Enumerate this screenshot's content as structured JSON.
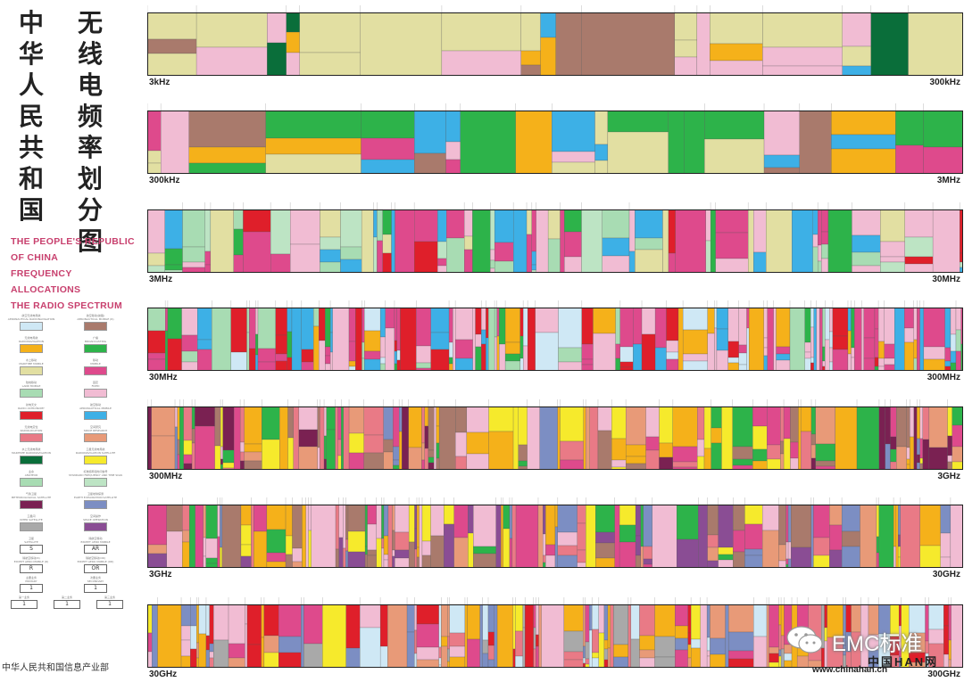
{
  "title": {
    "cn_left": "中华人民共和国",
    "cn_right": "无线电频率划分图",
    "en": "THE PEOPLE'S REPUBLIC\nOF CHINA\nFREQUENCY ALLOCATIONS\nTHE RADIO SPECTRUM"
  },
  "footer": "中华人民共和国信息产业部",
  "colors": {
    "aero_radionav": "#cfe8f5",
    "aero_mobile_route": "#a97a6c",
    "radionav": "#f5b11a",
    "broadcasting": "#2db34a",
    "maritime_mobile": "#e2dfa2",
    "mobile": "#de4a8c",
    "land_mobile": "#a8dcb3",
    "fixed": "#f1bcd3",
    "radio_astronomy": "#df1f2a",
    "aero_mobile": "#3db0e6",
    "earth_exploration": "#e89a78",
    "radiolocation": "#e97a86",
    "maritime_radionav": "#0a6e3a",
    "sat_radionav": "#f6ea2c",
    "space_research": "#7c8ec3",
    "std_freq": "#bde4c4",
    "meteorological": "#7a2152",
    "inter_satellite": "#a9a9a9",
    "space_ops": "#8a4d94",
    "white": "#ffffff"
  },
  "legend": {
    "items": [
      {
        "cn": "航空无线电导航",
        "en": "AERONAUTICAL RADIONAVIGATION",
        "color": "#cfe8f5"
      },
      {
        "cn": "航空移动(航路)",
        "en": "AERONAUTICAL MOBILE (R)",
        "color": "#a97a6c"
      },
      {
        "cn": "无线电导航",
        "en": "RADIONAVIGATION",
        "color": "#f5b11a"
      },
      {
        "cn": "广播",
        "en": "BROADCASTING",
        "color": "#2db34a"
      },
      {
        "cn": "水上移动",
        "en": "MARITIME MOBILE",
        "color": "#e2dfa2"
      },
      {
        "cn": "移动",
        "en": "MOBILE",
        "color": "#de4a8c"
      },
      {
        "cn": "陆地移动",
        "en": "LAND MOBILE",
        "color": "#a8dcb3"
      },
      {
        "cn": "固定",
        "en": "FIXED",
        "color": "#f1bcd3"
      },
      {
        "cn": "射电天文",
        "en": "RADIO ASTRONOMY",
        "color": "#df1f2a"
      },
      {
        "cn": "航空移动",
        "en": "AERONAUTICAL MOBILE",
        "color": "#3db0e6"
      },
      {
        "cn": "无线电定位",
        "en": "RADIOLOCATION",
        "color": "#e97a86"
      },
      {
        "cn": "空间研究",
        "en": "SPACE RESEARCH",
        "color": "#e89a78"
      },
      {
        "cn": "水上无线电导航",
        "en": "MARITIME RADIONAVIGATION",
        "color": "#0a6e3a"
      },
      {
        "cn": "卫星无线电导航",
        "en": "RADIONAVIGATION SATELLITE",
        "color": "#f6ea2c"
      },
      {
        "cn": "业余",
        "en": "AMATEUR",
        "color": "#a8dcb3"
      },
      {
        "cn": "标准频率和时间信号",
        "en": "STANDARD FREQUENCY AND TIME SIGNAL",
        "color": "#bde4c4"
      },
      {
        "cn": "气象卫星",
        "en": "METEOROLOGICAL SATELLITE",
        "color": "#7a2152"
      },
      {
        "cn": "卫星地球探测",
        "en": "EARTH EXPLORATION SATELLITE",
        "color": "#7c8ec3"
      },
      {
        "cn": "卫星间",
        "en": "INTER SATELLITE",
        "color": "#a9a9a9"
      },
      {
        "cn": "空间操作",
        "en": "SPACE OPERATION",
        "color": "#8a4d94"
      }
    ],
    "symbols": [
      {
        "cn": "卫星",
        "en": "SATELLITE",
        "sym": "S"
      },
      {
        "cn": "除航空移动",
        "en": "EXCEPT AERO MOBILE",
        "sym": "AR"
      },
      {
        "cn": "除航空移动(R)",
        "en": "EXCEPT AERO MOBILE (R)",
        "sym": "R"
      },
      {
        "cn": "除航空移动(OR)",
        "en": "EXCEPT AERO MOBILE (OR)",
        "sym": "OR"
      },
      {
        "cn": "主要业务",
        "en": "PRIMARY",
        "sym": "1"
      },
      {
        "cn": "次要业务",
        "en": "SECONDARY",
        "sym": "1"
      }
    ],
    "symbol_captions": [
      "第一业务",
      "第二业务",
      "第三业务"
    ]
  },
  "bands": [
    {
      "start_label": "3kHz",
      "end_label": "300kHz",
      "seed": 11
    },
    {
      "start_label": "300kHz",
      "end_label": "3MHz",
      "seed": 23
    },
    {
      "start_label": "3MHz",
      "end_label": "30MHz",
      "seed": 37
    },
    {
      "start_label": "30MHz",
      "end_label": "300MHz",
      "seed": 41
    },
    {
      "start_label": "300MHz",
      "end_label": "3GHz",
      "seed": 53
    },
    {
      "start_label": "3GHz",
      "end_label": "30GHz",
      "seed": 67
    },
    {
      "start_label": "30GHz",
      "end_label": "300GHz",
      "seed": 79
    }
  ],
  "watermark": {
    "text": "EMC标准",
    "site": "中国HAN网",
    "url": "www.chinahan.cn",
    "icon": "wechat-icon"
  }
}
